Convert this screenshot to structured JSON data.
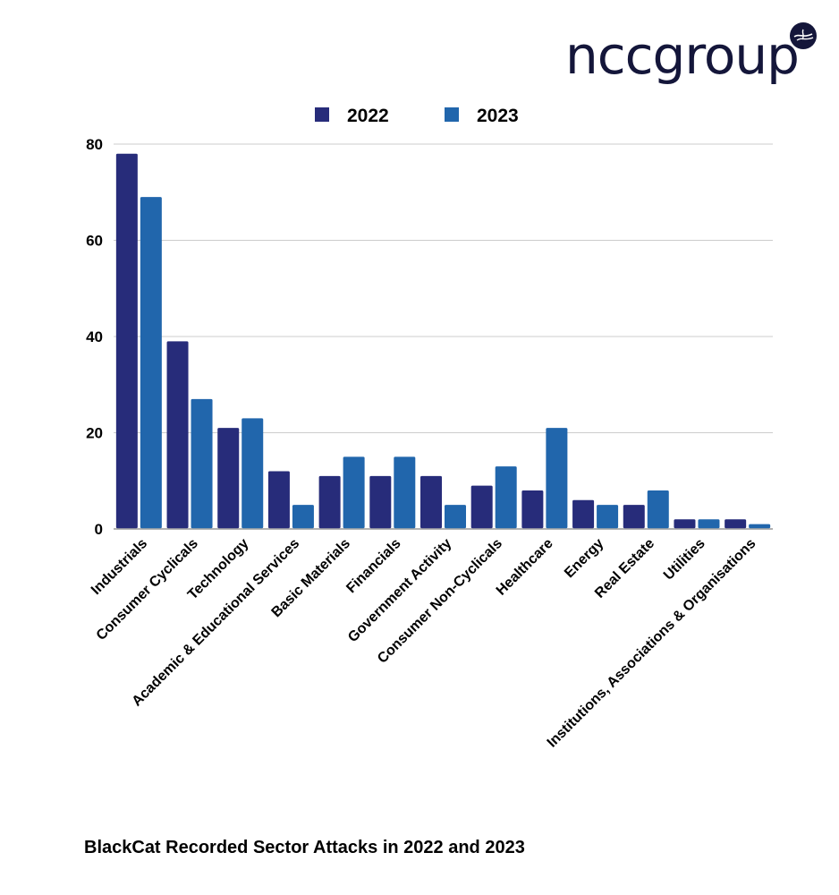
{
  "brand": {
    "logo_text": "nccgroup",
    "logo_color": "#14163a"
  },
  "caption": "BlackCat Recorded Sector Attacks in 2022 and 2023",
  "chart_data": {
    "type": "bar",
    "title": "BlackCat Recorded Sector Attacks in 2022 and 2023",
    "xlabel": "",
    "ylabel": "",
    "ylim": [
      0,
      80
    ],
    "yticks": [
      0,
      20,
      40,
      60,
      80
    ],
    "grid": true,
    "legend_position": "top-center",
    "categories": [
      "Industrials",
      "Consumer Cyclicals",
      "Technology",
      "Academic & Educational Services",
      "Basic Materials",
      "Financials",
      "Government Activity",
      "Consumer Non-Cyclicals",
      "Healthcare",
      "Energy",
      "Real Estate",
      "Utilities",
      "Institutions, Associations & Organisations"
    ],
    "series": [
      {
        "name": "2022",
        "color": "#272c7a",
        "values": [
          78,
          39,
          21,
          12,
          11,
          11,
          11,
          9,
          8,
          6,
          5,
          2,
          2
        ]
      },
      {
        "name": "2023",
        "color": "#2166ac",
        "values": [
          69,
          27,
          23,
          5,
          15,
          15,
          5,
          13,
          21,
          5,
          8,
          2,
          1
        ]
      }
    ]
  }
}
